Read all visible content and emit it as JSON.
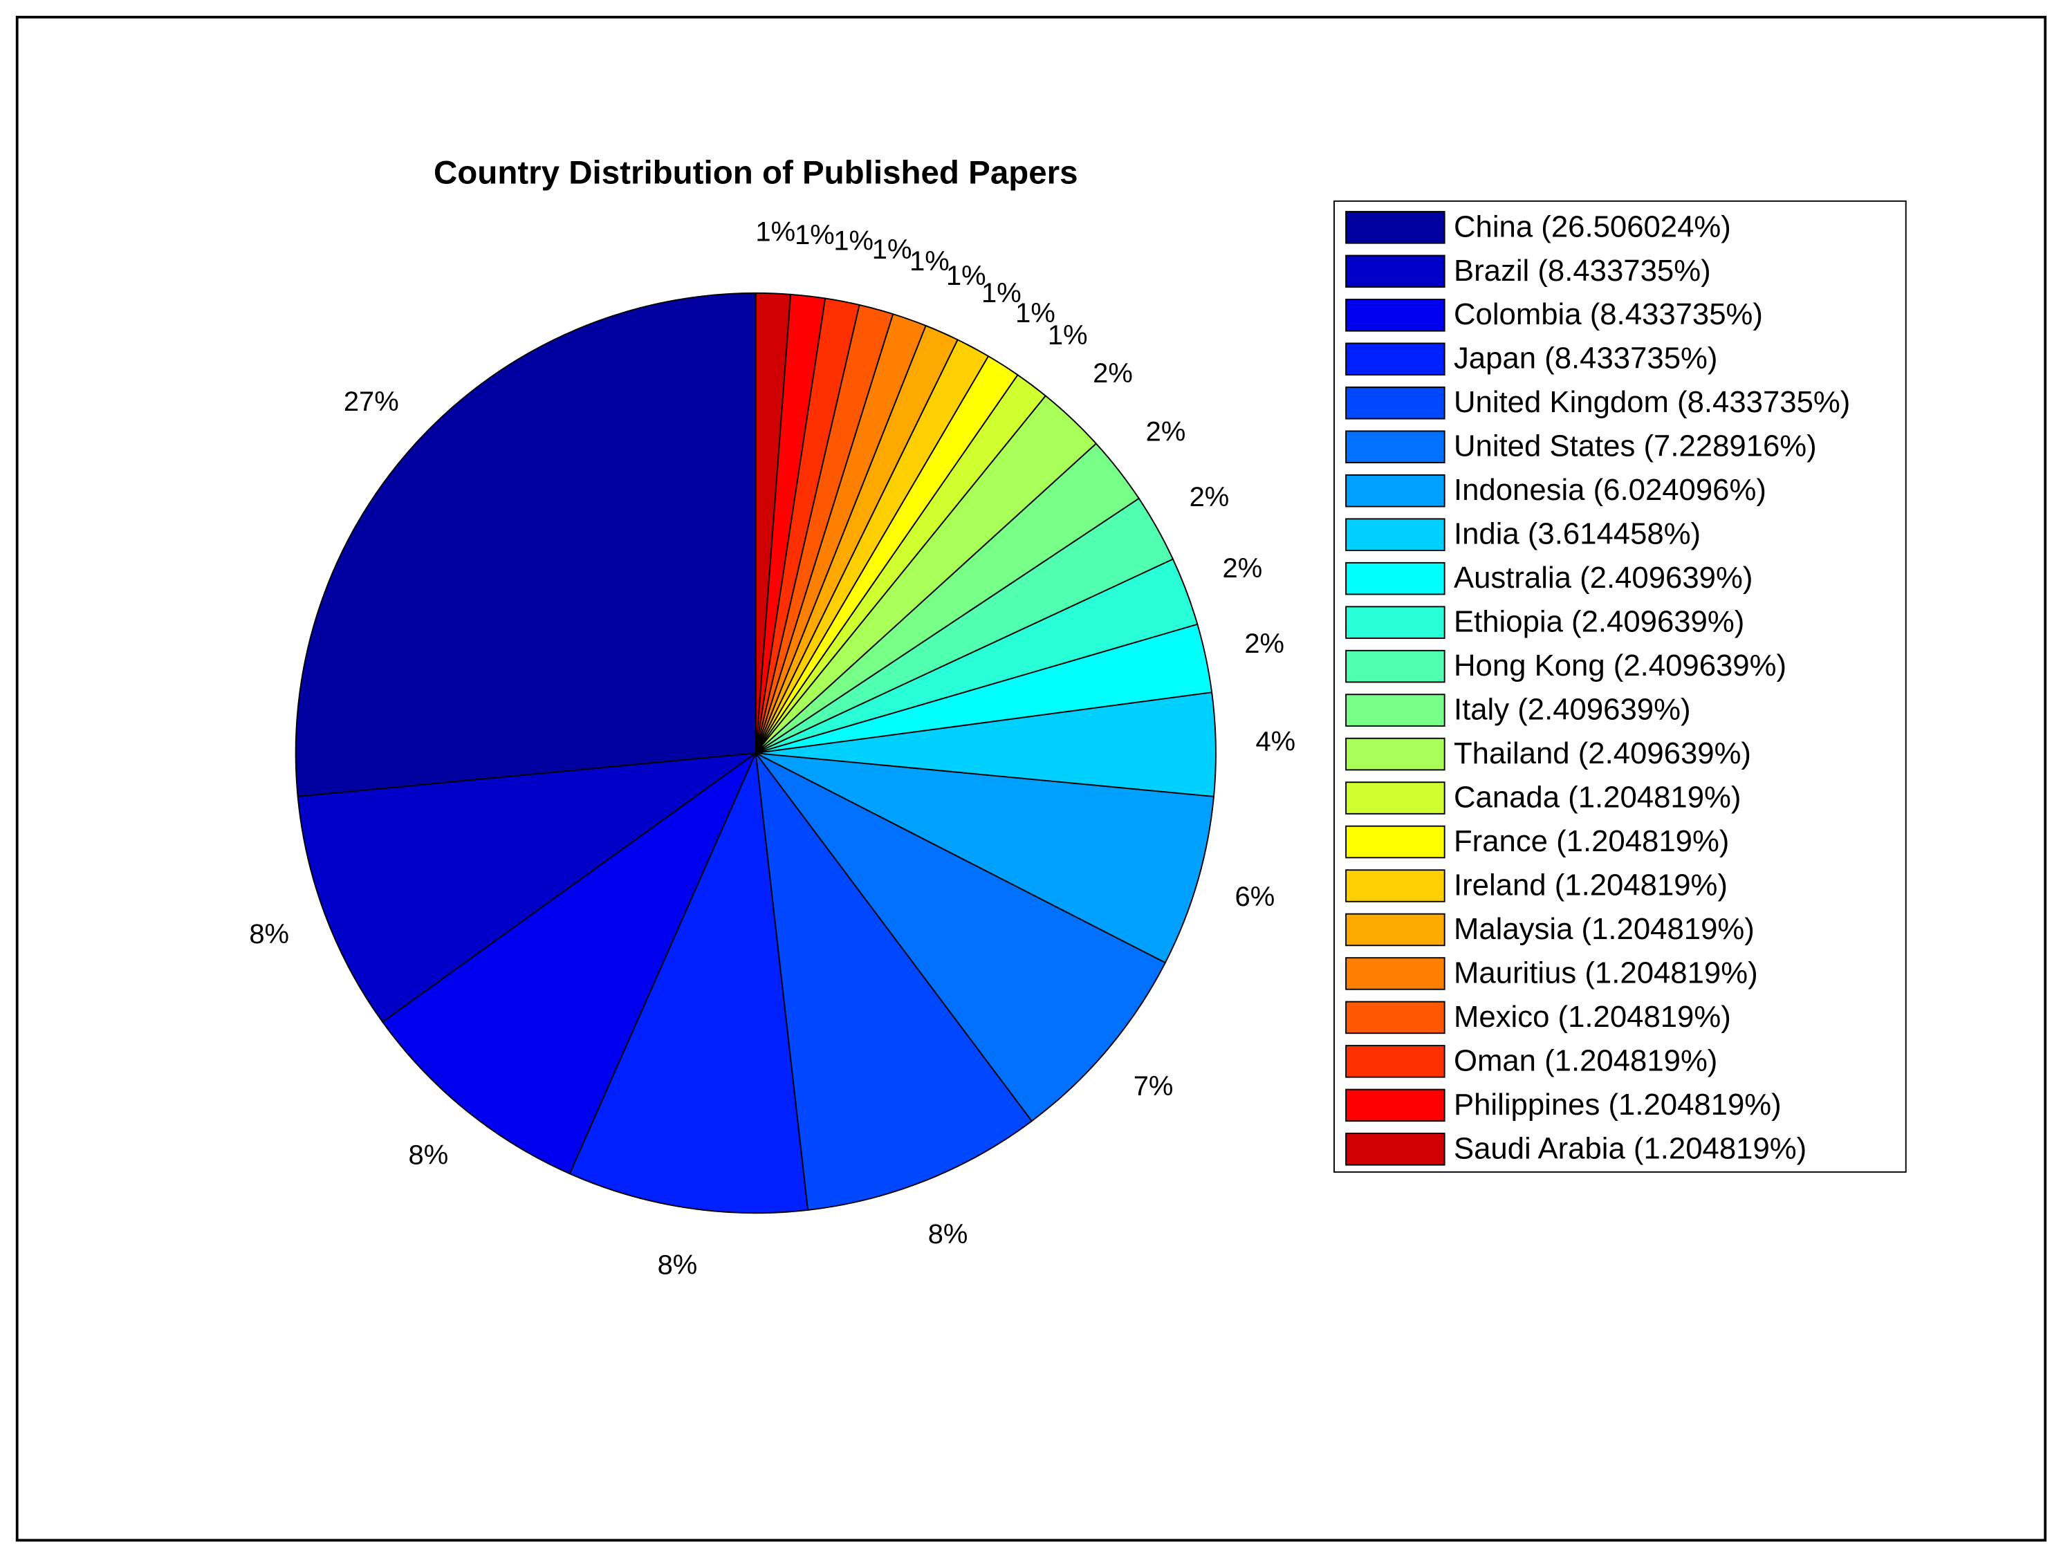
{
  "chart_data": {
    "type": "pie",
    "title": "Country Distribution of Published Papers",
    "categories": [
      "China (26.506024%)",
      "Brazil (8.433735%)",
      "Colombia (8.433735%)",
      "Japan (8.433735%)",
      "United Kingdom (8.433735%)",
      "United States (7.228916%)",
      "Indonesia (6.024096%)",
      "India (3.614458%)",
      "Australia (2.409639%)",
      "Ethiopia (2.409639%)",
      "Hong Kong (2.409639%)",
      "Italy (2.409639%)",
      "Thailand (2.409639%)",
      "Canada (1.204819%)",
      "France (1.204819%)",
      "Ireland (1.204819%)",
      "Malaysia (1.204819%)",
      "Mauritius (1.204819%)",
      "Mexico (1.204819%)",
      "Oman (1.204819%)",
      "Philippines (1.204819%)",
      "Saudi Arabia (1.204819%)"
    ],
    "values": [
      26.506024,
      8.433735,
      8.433735,
      8.433735,
      8.433735,
      7.228916,
      6.024096,
      3.614458,
      2.409639,
      2.409639,
      2.409639,
      2.409639,
      2.409639,
      1.204819,
      1.204819,
      1.204819,
      1.204819,
      1.204819,
      1.204819,
      1.204819,
      1.204819,
      1.204819
    ],
    "value_labels": [
      "27%",
      "8%",
      "8%",
      "8%",
      "8%",
      "7%",
      "6%",
      "4%",
      "2%",
      "2%",
      "2%",
      "2%",
      "2%",
      "1%",
      "1%",
      "1%",
      "1%",
      "1%",
      "1%",
      "1%",
      "1%",
      "1%"
    ],
    "colors": [
      "#0000A0",
      "#0000C8",
      "#0000F0",
      "#0020FF",
      "#0048FF",
      "#0070FF",
      "#00A0FF",
      "#00D0FF",
      "#00FFFF",
      "#28FFD8",
      "#50FFB0",
      "#78FF88",
      "#A8FF58",
      "#D0FF30",
      "#FFFF00",
      "#FFD000",
      "#FFA800",
      "#FF8000",
      "#FF5800",
      "#FF3000",
      "#FF0000",
      "#D00000"
    ],
    "legend": "right"
  }
}
